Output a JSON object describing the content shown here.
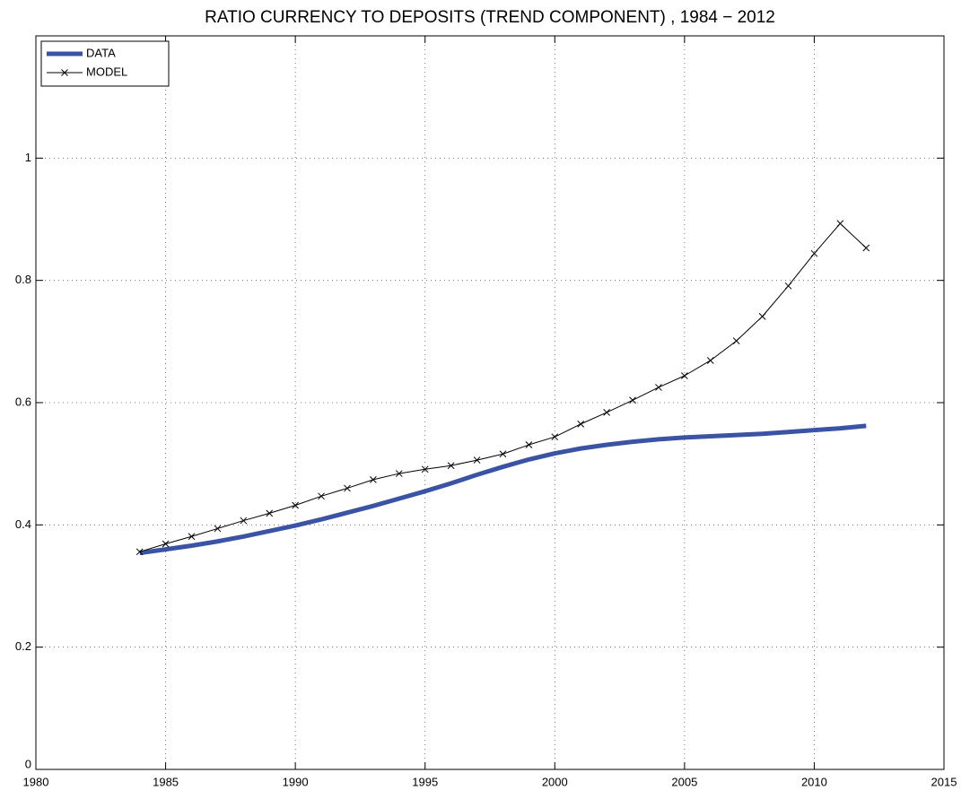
{
  "chart_data": {
    "type": "line",
    "title": "RATIO CURRENCY TO DEPOSITS (TREND COMPONENT) , 1984 − 2012",
    "x": [
      1984,
      1985,
      1986,
      1987,
      1988,
      1989,
      1990,
      1991,
      1992,
      1993,
      1994,
      1995,
      1996,
      1997,
      1998,
      1999,
      2000,
      2001,
      2002,
      2003,
      2004,
      2005,
      2006,
      2007,
      2008,
      2009,
      2010,
      2011,
      2012
    ],
    "series": [
      {
        "name": "DATA",
        "color": "#3a53a4",
        "marker": null,
        "values": [
          0.354,
          0.36,
          0.366,
          0.373,
          0.381,
          0.39,
          0.399,
          0.409,
          0.42,
          0.431,
          0.443,
          0.455,
          0.468,
          0.482,
          0.495,
          0.507,
          0.517,
          0.525,
          0.531,
          0.536,
          0.54,
          0.543,
          0.545,
          0.547,
          0.549,
          0.552,
          0.555,
          0.558,
          0.562
        ]
      },
      {
        "name": "MODEL",
        "color": "#000000",
        "marker": "x",
        "values": [
          0.356,
          0.369,
          0.381,
          0.394,
          0.407,
          0.419,
          0.432,
          0.447,
          0.46,
          0.474,
          0.484,
          0.491,
          0.497,
          0.506,
          0.516,
          0.531,
          0.544,
          0.565,
          0.584,
          0.604,
          0.625,
          0.644,
          0.669,
          0.701,
          0.741,
          0.791,
          0.844,
          0.893,
          0.853
        ]
      }
    ],
    "xlim": [
      1980,
      2015
    ],
    "xticks": [
      1980,
      1985,
      1990,
      1995,
      2000,
      2005,
      2010,
      2015
    ],
    "ylim": [
      0,
      1.2
    ],
    "yticks": [
      0,
      0.2,
      0.4,
      0.6,
      0.8,
      1
    ],
    "grid": true,
    "legend": "upper left"
  }
}
